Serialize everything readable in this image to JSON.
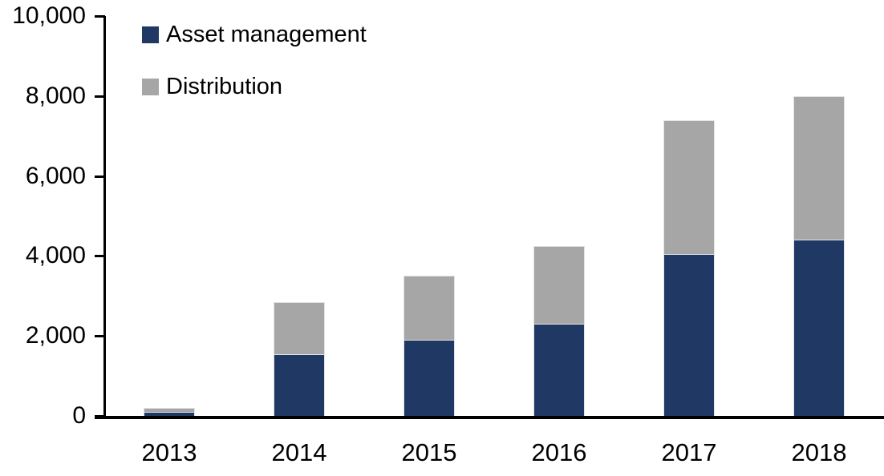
{
  "chart_data": {
    "type": "bar",
    "stacked": true,
    "title": "",
    "xlabel": "",
    "ylabel": "",
    "categories": [
      "2013",
      "2014",
      "2015",
      "2016",
      "2017",
      "2018"
    ],
    "series": [
      {
        "name": "Asset management",
        "color": "#1F3864",
        "values": [
          100,
          1550,
          1900,
          2300,
          4050,
          4400
        ]
      },
      {
        "name": "Distribution",
        "color": "#A6A6A6",
        "values": [
          100,
          1300,
          1600,
          1950,
          3350,
          3600
        ]
      }
    ],
    "ylim": [
      0,
      10000
    ],
    "ytick_interval": 2000,
    "yticks": [
      {
        "value": 0,
        "label": "0"
      },
      {
        "value": 2000,
        "label": "2,000"
      },
      {
        "value": 4000,
        "label": "4,000"
      },
      {
        "value": 6000,
        "label": "6,000"
      },
      {
        "value": 8000,
        "label": "8,000"
      },
      {
        "value": 10000,
        "label": "10,000"
      }
    ],
    "grid": false,
    "legend_position": "top-left-inside",
    "axis_color": "#000000",
    "background": "#FFFFFF"
  }
}
